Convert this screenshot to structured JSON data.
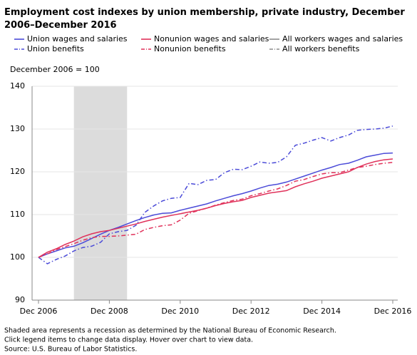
{
  "chart_data": {
    "type": "line",
    "title": "Employment cost indexes by union membership, private industry, December 2006–December 2016",
    "y_label": "December 2006 = 100",
    "x": [
      "2006-12",
      "2007-03",
      "2007-06",
      "2007-09",
      "2007-12",
      "2008-03",
      "2008-06",
      "2008-09",
      "2008-12",
      "2009-03",
      "2009-06",
      "2009-09",
      "2009-12",
      "2010-03",
      "2010-06",
      "2010-09",
      "2010-12",
      "2011-03",
      "2011-06",
      "2011-09",
      "2011-12",
      "2012-03",
      "2012-06",
      "2012-09",
      "2012-12",
      "2013-03",
      "2013-06",
      "2013-09",
      "2013-12",
      "2014-03",
      "2014-06",
      "2014-09",
      "2014-12",
      "2015-03",
      "2015-06",
      "2015-09",
      "2015-12",
      "2016-03",
      "2016-06",
      "2016-09",
      "2016-12"
    ],
    "xticks": [
      {
        "value": "2006-12",
        "label": "Dec 2006"
      },
      {
        "value": "2008-12",
        "label": "Dec 2008"
      },
      {
        "value": "2010-12",
        "label": "Dec 2010"
      },
      {
        "value": "2012-12",
        "label": "Dec 2012"
      },
      {
        "value": "2014-12",
        "label": "Dec 2014"
      },
      {
        "value": "2016-12",
        "label": "Dec 2016"
      }
    ],
    "ylim": [
      90,
      140
    ],
    "yticks": [
      90,
      100,
      110,
      120,
      130,
      140
    ],
    "grid": true,
    "recession": [
      "2007-12",
      "2009-06"
    ],
    "recession_color": "#dcdcdc",
    "series": [
      {
        "name": "Union wages and salaries",
        "color": "#4b4bd8",
        "dash": false,
        "values": [
          100,
          100.8,
          101.5,
          102.2,
          102.6,
          103.4,
          104.4,
          105.4,
          106.3,
          107.0,
          107.8,
          108.6,
          109.3,
          109.9,
          110.3,
          110.4,
          111.0,
          111.5,
          112.0,
          112.5,
          113.2,
          113.8,
          114.4,
          114.9,
          115.5,
          116.2,
          116.8,
          117.1,
          117.6,
          118.3,
          119.0,
          119.7,
          120.4,
          121.0,
          121.7,
          122.0,
          122.7,
          123.5,
          123.9,
          124.3,
          124.4
        ]
      },
      {
        "name": "Nonunion wages and salaries",
        "color": "#e0315a",
        "dash": false,
        "values": [
          100,
          101.2,
          102.0,
          103.0,
          103.8,
          104.8,
          105.5,
          106.0,
          106.3,
          106.8,
          107.3,
          107.8,
          108.4,
          108.9,
          109.4,
          109.8,
          110.2,
          110.6,
          111.0,
          111.5,
          112.1,
          112.6,
          113.0,
          113.3,
          114.0,
          114.5,
          115.0,
          115.3,
          115.6,
          116.5,
          117.2,
          117.8,
          118.5,
          119.0,
          119.5,
          120.0,
          121.0,
          121.8,
          122.4,
          122.8,
          123.0
        ]
      },
      {
        "name": "Union benefits",
        "color": "#4b4bd8",
        "dash": true,
        "values": [
          100,
          98.5,
          99.5,
          100.3,
          101.5,
          102.3,
          102.6,
          103.5,
          105.5,
          106.0,
          106.3,
          107.5,
          110.5,
          112.0,
          113.2,
          113.8,
          114.0,
          117.3,
          117.0,
          118.0,
          118.2,
          119.8,
          120.6,
          120.5,
          121.3,
          122.3,
          122.0,
          122.2,
          123.5,
          126.2,
          126.7,
          127.4,
          128.0,
          127.2,
          128.0,
          128.6,
          129.7,
          129.9,
          130.0,
          130.2,
          130.7
        ]
      },
      {
        "name": "Nonunion benefits",
        "color": "#e0315a",
        "dash": true,
        "values": [
          100,
          100.8,
          101.8,
          102.5,
          103.2,
          104.0,
          104.6,
          104.9,
          104.9,
          105.0,
          105.2,
          105.4,
          106.5,
          107.0,
          107.4,
          107.6,
          108.7,
          110.3,
          110.9,
          111.5,
          112.2,
          112.8,
          113.3,
          113.6,
          114.4,
          114.9,
          115.5,
          116.0,
          116.8,
          117.8,
          118.2,
          118.9,
          119.5,
          119.8,
          119.8,
          120.4,
          121.0,
          121.3,
          121.7,
          122.0,
          122.2
        ]
      }
    ],
    "hidden_series": [
      {
        "name": "All workers wages and salaries",
        "color": "#8c8c8c",
        "dash": false
      },
      {
        "name": "All workers benefits",
        "color": "#8c8c8c",
        "dash": true
      }
    ],
    "notes": [
      "Shaded area represents a recession as determined by the National Bureau of Economic Research.",
      "Click legend items to change data display. Hover over chart to view data.",
      "Source: U.S. Bureau of Labor Statistics."
    ]
  }
}
